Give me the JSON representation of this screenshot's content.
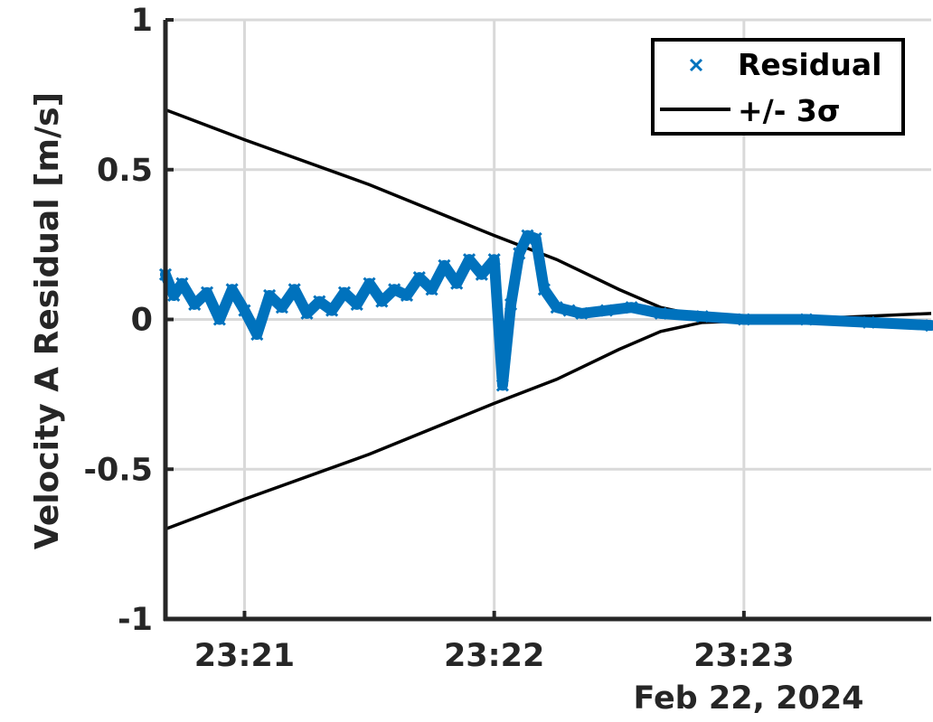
{
  "chart_data": {
    "type": "scatter",
    "ylabel": "Velocity A Residual [m/s]",
    "date_label": "Feb 22, 2024",
    "ylim": [
      -1,
      1
    ],
    "yticks": [
      -1,
      -0.5,
      0,
      0.5,
      1
    ],
    "ytick_labels": [
      "-1",
      "-0.5",
      "0",
      "0.5",
      "1"
    ],
    "xlim": [
      "23:20:41",
      "23:23:45"
    ],
    "xticks": [
      "23:21:00",
      "23:22:00",
      "23:23:00"
    ],
    "xtick_labels": [
      "23:21",
      "23:22",
      "23:23"
    ],
    "grid": true,
    "legend_position": "top-right",
    "series": [
      {
        "name": "Residual",
        "style": "x-markers",
        "color": "#0072BD",
        "x": [
          "23:20:41",
          "23:20:43",
          "23:20:45",
          "23:20:48",
          "23:20:51",
          "23:20:54",
          "23:20:57",
          "23:21:00",
          "23:21:03",
          "23:21:06",
          "23:21:09",
          "23:21:12",
          "23:21:15",
          "23:21:18",
          "23:21:21",
          "23:21:24",
          "23:21:27",
          "23:21:30",
          "23:21:33",
          "23:21:36",
          "23:21:39",
          "23:21:42",
          "23:21:45",
          "23:21:48",
          "23:21:51",
          "23:21:54",
          "23:21:57",
          "23:22:00",
          "23:22:02",
          "23:22:04",
          "23:22:06",
          "23:22:08",
          "23:22:10",
          "23:22:12",
          "23:22:15",
          "23:22:18",
          "23:22:21",
          "23:22:27",
          "23:22:33",
          "23:22:40",
          "23:22:50",
          "23:23:00",
          "23:23:15",
          "23:23:30",
          "23:23:45"
        ],
        "y": [
          0.15,
          0.08,
          0.12,
          0.05,
          0.09,
          0.0,
          0.1,
          0.03,
          -0.05,
          0.08,
          0.04,
          0.1,
          0.02,
          0.06,
          0.03,
          0.09,
          0.05,
          0.12,
          0.06,
          0.1,
          0.08,
          0.14,
          0.1,
          0.18,
          0.12,
          0.2,
          0.15,
          0.2,
          -0.22,
          0.05,
          0.22,
          0.28,
          0.27,
          0.1,
          0.04,
          0.03,
          0.02,
          0.03,
          0.04,
          0.02,
          0.01,
          0.0,
          0.0,
          -0.01,
          -0.02
        ]
      },
      {
        "name": "+/- 3σ",
        "style": "line",
        "color": "#000000",
        "x": [
          "23:20:41",
          "23:21:00",
          "23:21:30",
          "23:22:00",
          "23:22:15",
          "23:22:30",
          "23:22:40",
          "23:22:50",
          "23:23:00",
          "23:23:20",
          "23:23:45"
        ],
        "upper": [
          0.7,
          0.6,
          0.45,
          0.28,
          0.2,
          0.1,
          0.04,
          0.01,
          0.005,
          0.005,
          0.02
        ],
        "lower": [
          -0.7,
          -0.6,
          -0.45,
          -0.28,
          -0.2,
          -0.1,
          -0.04,
          -0.01,
          -0.005,
          -0.005,
          -0.01
        ]
      }
    ]
  }
}
